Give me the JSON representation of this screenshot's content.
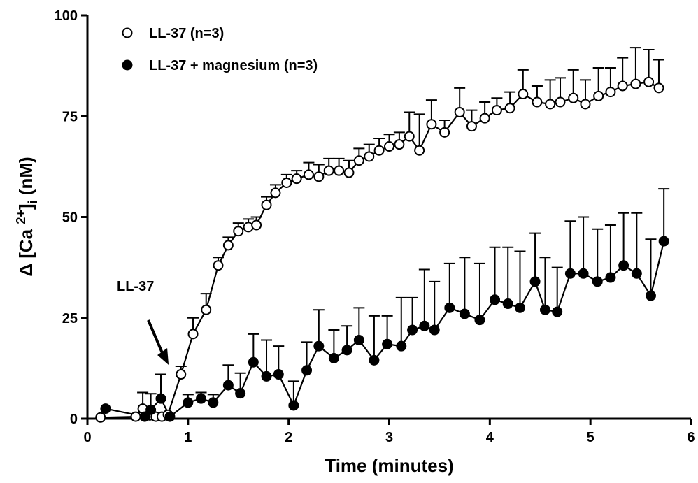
{
  "chart_data": {
    "type": "line",
    "title": "",
    "xlabel": "Time (minutes)",
    "ylabel_parts": {
      "prefix": "Δ [Ca",
      "superscript": "2+",
      "close": "]",
      "subscript": "i",
      "unit": " (nM)"
    },
    "xlim": [
      0,
      6
    ],
    "ylim": [
      0,
      100
    ],
    "x_ticks": [
      0,
      1,
      2,
      3,
      4,
      5,
      6
    ],
    "y_ticks": [
      0,
      25,
      50,
      75,
      100
    ],
    "grid": false,
    "legend_position": "top-left",
    "annotation": {
      "text": "LL-37",
      "points_to_x": 0.8
    },
    "series": [
      {
        "name": "LL-37 (n=3)",
        "marker": "open-circle",
        "color": "#000000",
        "x": [
          0.13,
          0.48,
          0.55,
          0.62,
          0.68,
          0.74,
          0.8,
          0.93,
          1.05,
          1.18,
          1.3,
          1.4,
          1.5,
          1.6,
          1.68,
          1.78,
          1.87,
          1.98,
          2.08,
          2.2,
          2.3,
          2.4,
          2.5,
          2.6,
          2.7,
          2.8,
          2.9,
          3.0,
          3.1,
          3.2,
          3.3,
          3.42,
          3.55,
          3.7,
          3.82,
          3.95,
          4.07,
          4.2,
          4.33,
          4.47,
          4.6,
          4.7,
          4.83,
          4.95,
          5.08,
          5.2,
          5.32,
          5.45,
          5.58,
          5.68
        ],
        "values": [
          0.3,
          0.5,
          2.5,
          0.8,
          0.5,
          0.5,
          1.0,
          11.0,
          21.0,
          27.0,
          38.0,
          43.0,
          46.5,
          47.5,
          48.0,
          53.0,
          56.0,
          58.5,
          59.5,
          60.5,
          60.0,
          61.5,
          61.5,
          61.0,
          64.0,
          65.0,
          66.5,
          67.5,
          68.0,
          70.0,
          66.5,
          73.0,
          71.0,
          76.0,
          72.5,
          74.5,
          76.5,
          77.0,
          80.5,
          78.5,
          78.0,
          78.5,
          79.5,
          78.0,
          80.0,
          81.0,
          82.5,
          83.0,
          83.5,
          82.0
        ],
        "errors": [
          0,
          0,
          4,
          0,
          0,
          0,
          0,
          2,
          4,
          4,
          2,
          2,
          2,
          2,
          2,
          2,
          2,
          2,
          2,
          3,
          3,
          3,
          3,
          3,
          3,
          3,
          3,
          3,
          3,
          6,
          9,
          6,
          3,
          6,
          4,
          4,
          3,
          4,
          6,
          4,
          6,
          6,
          7,
          6,
          7,
          6,
          7,
          9,
          8,
          7
        ]
      },
      {
        "name": "LL-37 + magnesium (n=3)",
        "marker": "filled-circle",
        "color": "#000000",
        "x": [
          0.18,
          0.57,
          0.63,
          0.73,
          0.82,
          1.0,
          1.13,
          1.25,
          1.4,
          1.52,
          1.65,
          1.78,
          1.9,
          2.05,
          2.18,
          2.3,
          2.45,
          2.58,
          2.7,
          2.85,
          2.98,
          3.12,
          3.23,
          3.35,
          3.45,
          3.6,
          3.75,
          3.9,
          4.05,
          4.18,
          4.3,
          4.45,
          4.55,
          4.67,
          4.8,
          4.93,
          5.07,
          5.2,
          5.33,
          5.46,
          5.6,
          5.73
        ],
        "values": [
          2.5,
          0.5,
          2.2,
          5.0,
          0.5,
          4.0,
          5.0,
          4.0,
          8.3,
          6.3,
          14.0,
          10.5,
          11.0,
          3.3,
          12.0,
          18.0,
          15.0,
          17.0,
          19.5,
          14.5,
          18.5,
          18.0,
          22.0,
          23.0,
          22.0,
          27.5,
          26.0,
          24.5,
          29.5,
          28.5,
          27.5,
          34.0,
          27.0,
          26.5,
          36.0,
          36.0,
          34.0,
          35.0,
          38.0,
          36.0,
          30.5,
          44.0
        ],
        "errors": [
          0,
          0,
          4,
          6,
          0,
          2,
          1.5,
          2,
          5,
          5,
          7,
          9,
          7,
          6,
          7,
          9,
          7,
          6,
          8,
          11,
          7,
          12,
          8,
          14,
          12,
          11,
          14,
          14,
          13,
          14,
          14,
          12,
          13,
          11,
          13,
          14,
          13,
          13,
          13,
          15,
          14,
          13
        ]
      }
    ]
  }
}
